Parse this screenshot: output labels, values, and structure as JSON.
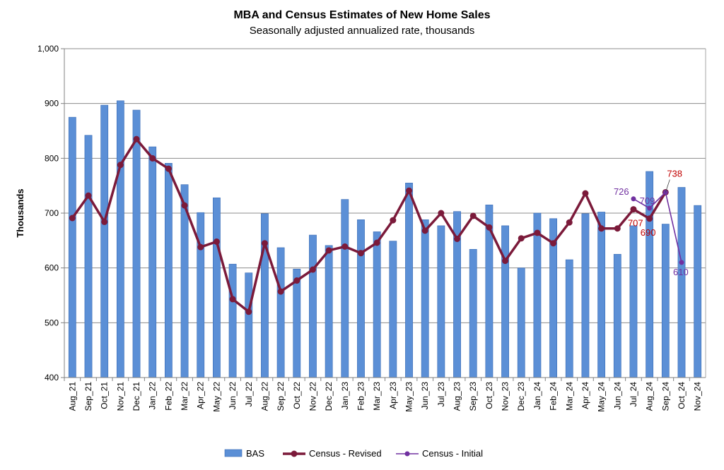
{
  "chart_data": {
    "type": "bar",
    "title": "MBA and Census Estimates of New Home Sales",
    "subtitle": "Seasonally adjusted  annualized  rate, thousands",
    "ylabel": "Thousands",
    "xlabel": "",
    "ylim": [
      400,
      1000
    ],
    "yticks": [
      400,
      500,
      600,
      700,
      800,
      900,
      1000
    ],
    "ytick_labels": [
      "400",
      "500",
      "600",
      "700",
      "800",
      "900",
      "1,000"
    ],
    "categories": [
      "Aug_21",
      "Sep_21",
      "Oct_21",
      "Nov_21",
      "Dec_21",
      "Jan_22",
      "Feb_22",
      "Mar_22",
      "Apr_22",
      "May_22",
      "Jun_22",
      "Jul_22",
      "Aug_22",
      "Sep_22",
      "Oct_22",
      "Nov_22",
      "Dec_22",
      "Jan_23",
      "Feb_23",
      "Mar_23",
      "Apr_23",
      "May_23",
      "Jun_23",
      "Jul_23",
      "Aug_23",
      "Sep_23",
      "Oct_23",
      "Nov_23",
      "Dec_23",
      "Jan_24",
      "Feb_24",
      "Mar_24",
      "Apr_24",
      "May_24",
      "Jun_24",
      "Jul_24",
      "Aug_24",
      "Sep_24",
      "Oct_24",
      "Nov_24"
    ],
    "series": [
      {
        "name": "BAS",
        "kind": "bar",
        "color": "#5b8fd6",
        "values": [
          875,
          842,
          897,
          905,
          888,
          821,
          791,
          752,
          701,
          728,
          607,
          591,
          699,
          637,
          598,
          660,
          641,
          725,
          688,
          666,
          649,
          755,
          688,
          677,
          703,
          634,
          715,
          677,
          600,
          700,
          690,
          615,
          699,
          702,
          625,
          677,
          776,
          680,
          747,
          714
        ]
      },
      {
        "name": "Census - Revised",
        "kind": "line",
        "color": "#7b1a3a",
        "values": [
          691,
          732,
          684,
          788,
          835,
          800,
          781,
          714,
          638,
          648,
          543,
          520,
          645,
          557,
          577,
          597,
          632,
          639,
          627,
          646,
          687,
          741,
          668,
          700,
          653,
          695,
          674,
          613,
          654,
          664,
          645,
          683,
          736,
          672,
          672,
          707,
          690,
          738,
          null,
          null
        ]
      },
      {
        "name": "Census - Initial",
        "kind": "line",
        "color": "#7030a0",
        "values": [
          null,
          null,
          null,
          null,
          null,
          null,
          null,
          null,
          null,
          null,
          null,
          null,
          null,
          null,
          null,
          null,
          null,
          null,
          null,
          null,
          null,
          null,
          null,
          null,
          null,
          null,
          null,
          null,
          null,
          null,
          null,
          null,
          null,
          null,
          null,
          726,
          709,
          738,
          610,
          null
        ]
      }
    ],
    "annotations": [
      {
        "series": "Census - Revised",
        "category": "Jul_24",
        "text": "707"
      },
      {
        "series": "Census - Revised",
        "category": "Aug_24",
        "text": "690"
      },
      {
        "series": "Census - Revised",
        "category": "Sep_24",
        "text": "738"
      },
      {
        "series": "Census - Initial",
        "category": "Jul_24",
        "text": "726"
      },
      {
        "series": "Census - Initial",
        "category": "Aug_24",
        "text": "709"
      },
      {
        "series": "Census - Initial",
        "category": "Oct_24",
        "text": "610"
      }
    ],
    "legend": {
      "position": "bottom",
      "items": [
        "BAS",
        "Census - Revised",
        "Census - Initial"
      ]
    },
    "grid": true
  }
}
